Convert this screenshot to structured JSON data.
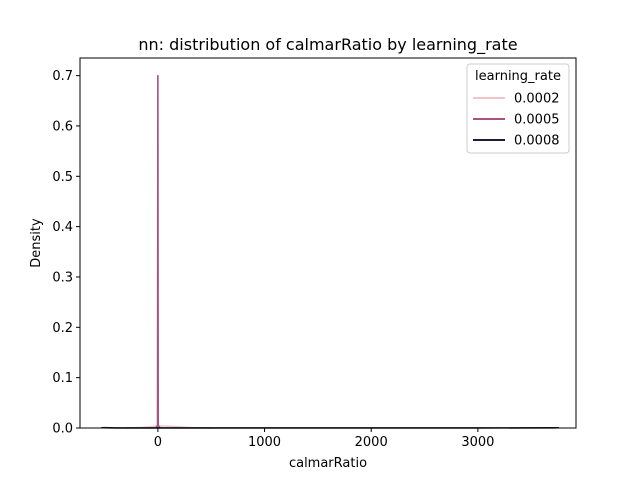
{
  "chart_data": {
    "type": "line",
    "subtype": "kde",
    "title": "nn: distribution of calmarRatio by learning_rate",
    "xlabel": "calmarRatio",
    "ylabel": "Density",
    "xlim": [
      -730,
      3920
    ],
    "ylim": [
      0,
      0.735
    ],
    "xticks": [
      0,
      1000,
      2000,
      3000
    ],
    "yticks": [
      0.0,
      0.1,
      0.2,
      0.3,
      0.4,
      0.5,
      0.6,
      0.7
    ],
    "xtick_labels": [
      "0",
      "1000",
      "2000",
      "3000"
    ],
    "ytick_labels": [
      "0.0",
      "0.1",
      "0.2",
      "0.3",
      "0.4",
      "0.5",
      "0.6",
      "0.7"
    ],
    "legend": {
      "title": "learning_rate",
      "placement": "top-right"
    },
    "series": [
      {
        "name": "0.0002",
        "color": "#f0c4c8",
        "x": [
          -300,
          -150,
          -50,
          0,
          50,
          150,
          300,
          500
        ],
        "y": [
          0,
          0.001,
          0.003,
          0.004,
          0.004,
          0.003,
          0.001,
          0
        ]
      },
      {
        "name": "0.0005",
        "color": "#a8527e",
        "x": [
          -20,
          -3,
          -1.5,
          0,
          1.5,
          3,
          20
        ],
        "y": [
          0,
          0.005,
          0.35,
          0.7,
          0.35,
          0.005,
          0
        ]
      },
      {
        "name": "0.0008",
        "color": "#1f1b36",
        "x": [
          -530,
          -500,
          -400,
          0,
          1000,
          2000,
          3000,
          3700,
          3760
        ],
        "y": [
          0.0005,
          0.0006,
          0.0002,
          0.0001,
          0.0001,
          0.0001,
          0.0001,
          0.0004,
          0.0005
        ]
      }
    ]
  }
}
